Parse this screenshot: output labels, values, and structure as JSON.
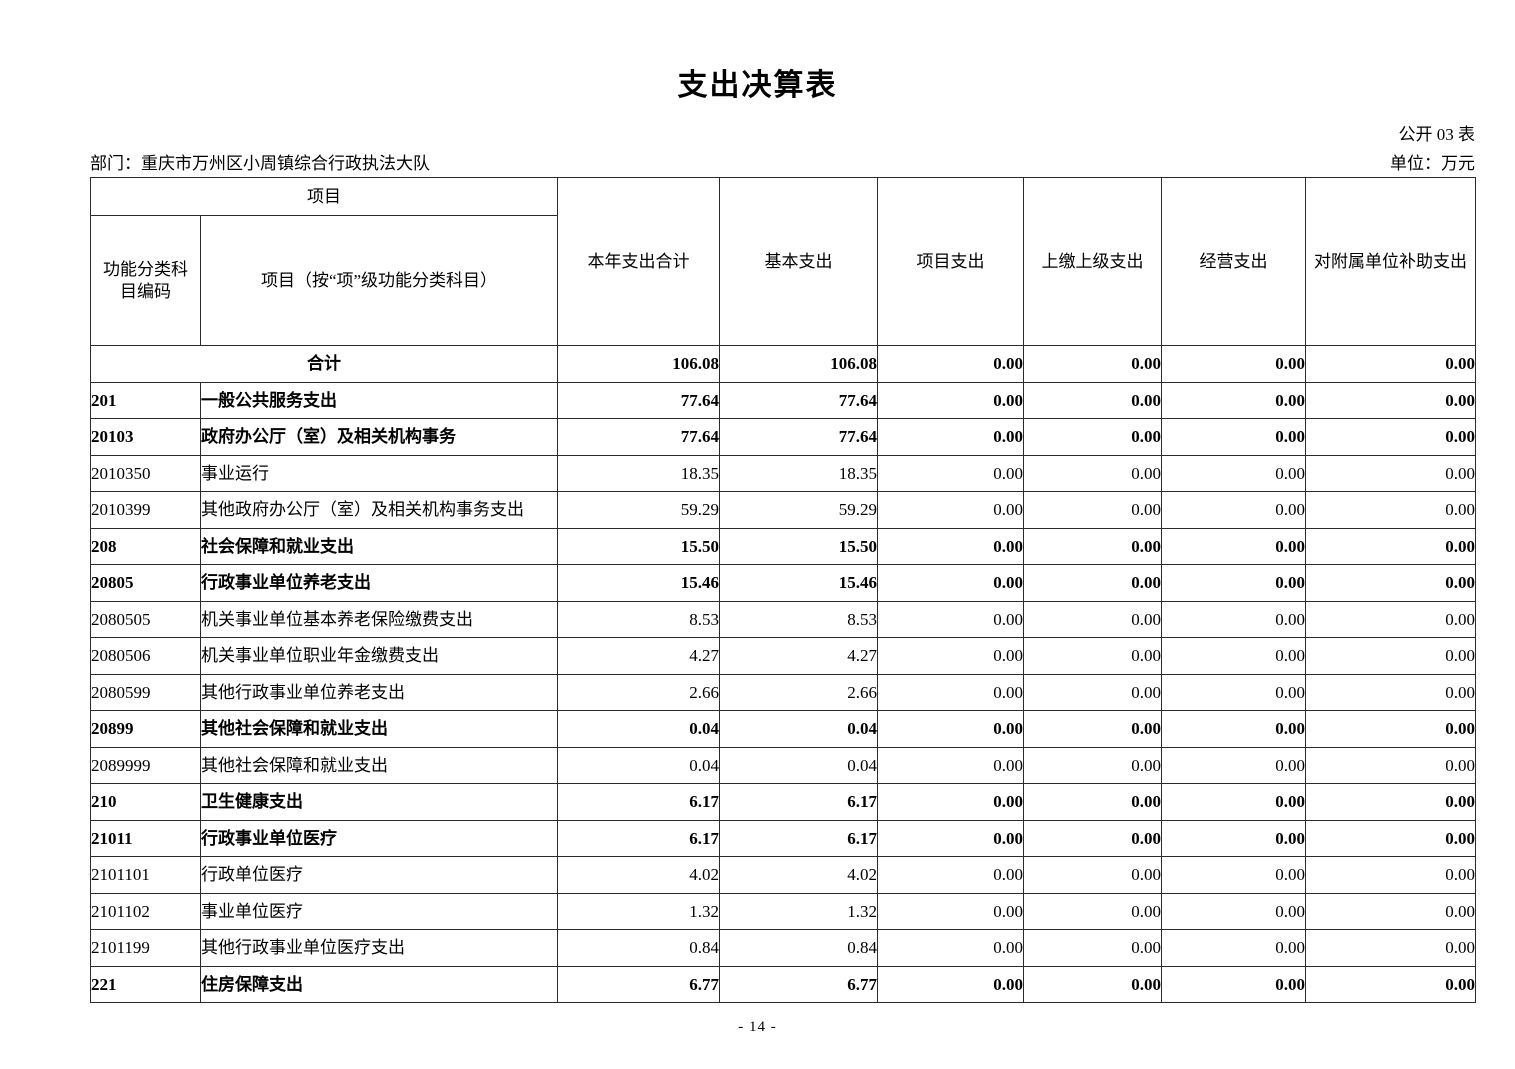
{
  "page": {
    "title": "支出决算表",
    "table_code": "公开 03 表",
    "department_label": "部门：重庆市万州区小周镇综合行政执法大队",
    "unit_label": "单位：万元",
    "page_number": "- 14 -"
  },
  "table": {
    "group_header": "项目",
    "columns": [
      "功能分类科目编码",
      "项目（按“项”级功能分类科目）",
      "本年支出合计",
      "基本支出",
      "项目支出",
      "上缴上级支出",
      "经营支出",
      "对附属单位补助支出"
    ],
    "rows": [
      {
        "code": "",
        "name": "合计",
        "merged": true,
        "bold": true,
        "values": [
          "106.08",
          "106.08",
          "0.00",
          "0.00",
          "0.00",
          "0.00"
        ]
      },
      {
        "code": "201",
        "name": "一般公共服务支出",
        "merged": false,
        "bold": true,
        "values": [
          "77.64",
          "77.64",
          "0.00",
          "0.00",
          "0.00",
          "0.00"
        ]
      },
      {
        "code": "20103",
        "name": "政府办公厅（室）及相关机构事务",
        "merged": false,
        "bold": true,
        "values": [
          "77.64",
          "77.64",
          "0.00",
          "0.00",
          "0.00",
          "0.00"
        ]
      },
      {
        "code": "2010350",
        "name": "事业运行",
        "merged": false,
        "bold": false,
        "values": [
          "18.35",
          "18.35",
          "0.00",
          "0.00",
          "0.00",
          "0.00"
        ]
      },
      {
        "code": "2010399",
        "name": "其他政府办公厅（室）及相关机构事务支出",
        "merged": false,
        "bold": false,
        "values": [
          "59.29",
          "59.29",
          "0.00",
          "0.00",
          "0.00",
          "0.00"
        ]
      },
      {
        "code": "208",
        "name": "社会保障和就业支出",
        "merged": false,
        "bold": true,
        "values": [
          "15.50",
          "15.50",
          "0.00",
          "0.00",
          "0.00",
          "0.00"
        ]
      },
      {
        "code": "20805",
        "name": "行政事业单位养老支出",
        "merged": false,
        "bold": true,
        "values": [
          "15.46",
          "15.46",
          "0.00",
          "0.00",
          "0.00",
          "0.00"
        ]
      },
      {
        "code": "2080505",
        "name": "机关事业单位基本养老保险缴费支出",
        "merged": false,
        "bold": false,
        "values": [
          "8.53",
          "8.53",
          "0.00",
          "0.00",
          "0.00",
          "0.00"
        ]
      },
      {
        "code": "2080506",
        "name": "机关事业单位职业年金缴费支出",
        "merged": false,
        "bold": false,
        "values": [
          "4.27",
          "4.27",
          "0.00",
          "0.00",
          "0.00",
          "0.00"
        ]
      },
      {
        "code": "2080599",
        "name": "其他行政事业单位养老支出",
        "merged": false,
        "bold": false,
        "values": [
          "2.66",
          "2.66",
          "0.00",
          "0.00",
          "0.00",
          "0.00"
        ]
      },
      {
        "code": "20899",
        "name": "其他社会保障和就业支出",
        "merged": false,
        "bold": true,
        "values": [
          "0.04",
          "0.04",
          "0.00",
          "0.00",
          "0.00",
          "0.00"
        ]
      },
      {
        "code": "2089999",
        "name": "其他社会保障和就业支出",
        "merged": false,
        "bold": false,
        "values": [
          "0.04",
          "0.04",
          "0.00",
          "0.00",
          "0.00",
          "0.00"
        ]
      },
      {
        "code": "210",
        "name": "卫生健康支出",
        "merged": false,
        "bold": true,
        "values": [
          "6.17",
          "6.17",
          "0.00",
          "0.00",
          "0.00",
          "0.00"
        ]
      },
      {
        "code": "21011",
        "name": "行政事业单位医疗",
        "merged": false,
        "bold": true,
        "values": [
          "6.17",
          "6.17",
          "0.00",
          "0.00",
          "0.00",
          "0.00"
        ]
      },
      {
        "code": "2101101",
        "name": "行政单位医疗",
        "merged": false,
        "bold": false,
        "values": [
          "4.02",
          "4.02",
          "0.00",
          "0.00",
          "0.00",
          "0.00"
        ]
      },
      {
        "code": "2101102",
        "name": "事业单位医疗",
        "merged": false,
        "bold": false,
        "values": [
          "1.32",
          "1.32",
          "0.00",
          "0.00",
          "0.00",
          "0.00"
        ]
      },
      {
        "code": "2101199",
        "name": "其他行政事业单位医疗支出",
        "merged": false,
        "bold": false,
        "values": [
          "0.84",
          "0.84",
          "0.00",
          "0.00",
          "0.00",
          "0.00"
        ]
      },
      {
        "code": "221",
        "name": "住房保障支出",
        "merged": false,
        "bold": true,
        "values": [
          "6.77",
          "6.77",
          "0.00",
          "0.00",
          "0.00",
          "0.00"
        ]
      }
    ]
  }
}
